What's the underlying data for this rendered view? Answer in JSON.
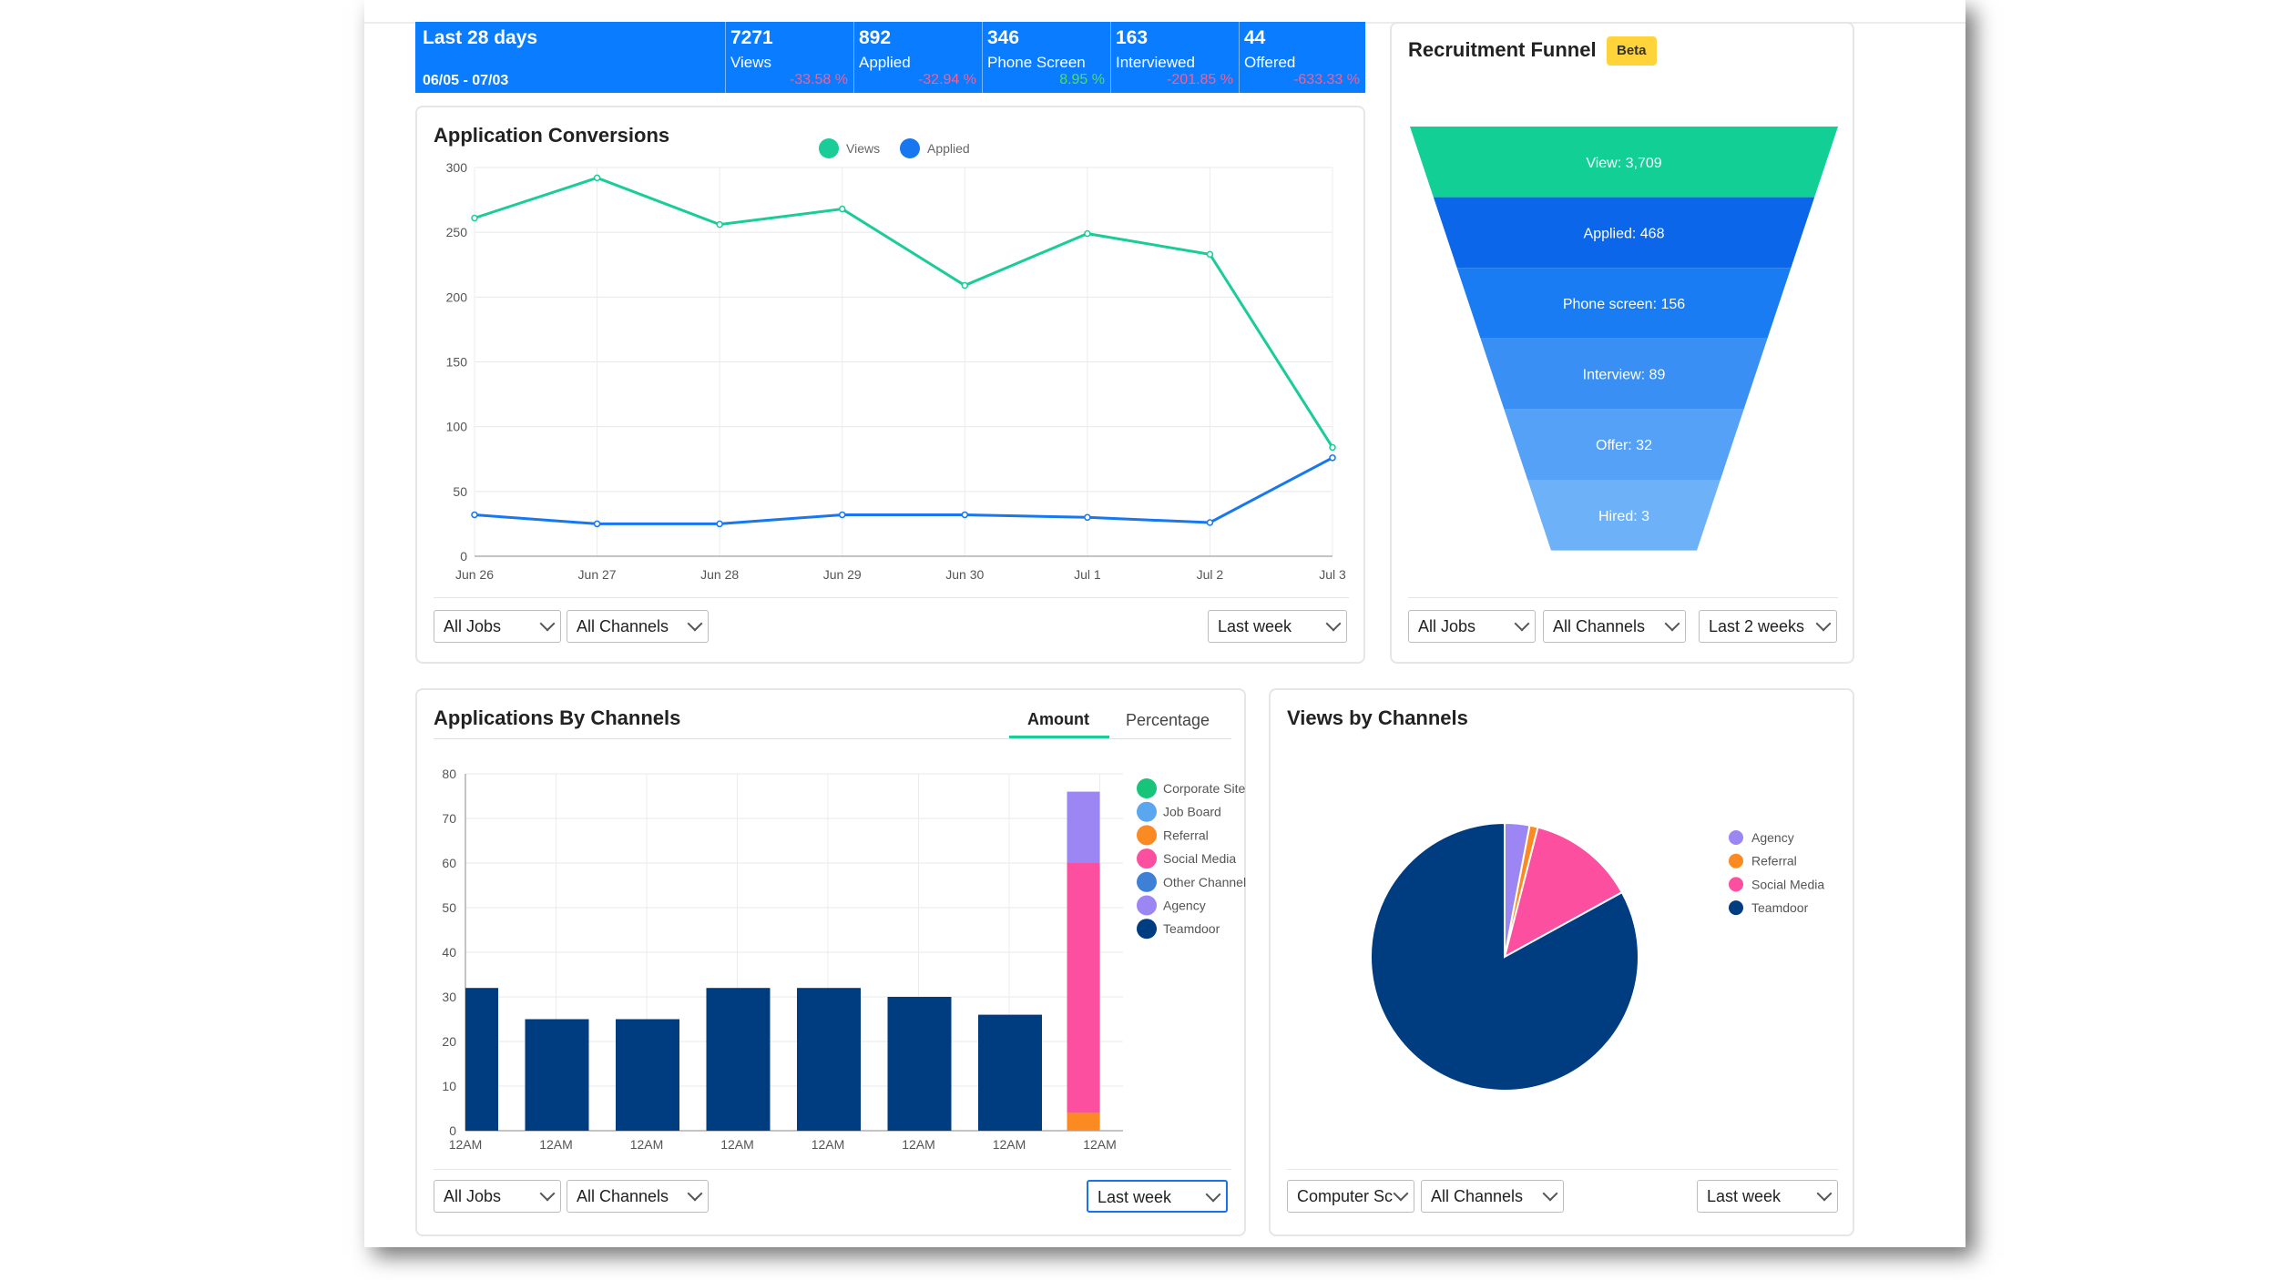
{
  "stats": {
    "period_label": "Last 28 days",
    "date_range": "06/05 - 07/03",
    "items": [
      {
        "value": "7271",
        "label": "Views",
        "change": "-33.58 %",
        "change_color": "#ff5c8a"
      },
      {
        "value": "892",
        "label": "Applied",
        "change": "-32.94 %",
        "change_color": "#ff5c8a"
      },
      {
        "value": "346",
        "label": "Phone Screen",
        "change": "8.95 %",
        "change_color": "#52e052"
      },
      {
        "value": "163",
        "label": "Interviewed",
        "change": "-201.85 %",
        "change_color": "#ff5c8a"
      },
      {
        "value": "44",
        "label": "Offered",
        "change": "-633.33 %",
        "change_color": "#ff5c8a"
      }
    ]
  },
  "conversions": {
    "title": "Application Conversions",
    "filters": {
      "job": "All Jobs",
      "channel": "All Channels",
      "range": "Last week"
    },
    "chart_data": {
      "type": "line",
      "x": [
        "Jun 26",
        "Jun 27",
        "Jun 28",
        "Jun 29",
        "Jun 30",
        "Jul 1",
        "Jul 2",
        "Jul 3"
      ],
      "series": [
        {
          "name": "Views",
          "color": "#19cc98",
          "values": [
            261,
            292,
            256,
            268,
            209,
            249,
            233,
            84
          ]
        },
        {
          "name": "Applied",
          "color": "#1777f0",
          "values": [
            32,
            25,
            25,
            32,
            32,
            30,
            26,
            76
          ]
        }
      ],
      "ylim": [
        0,
        300
      ],
      "yticks": [
        0,
        50,
        100,
        150,
        200,
        250,
        300
      ],
      "grid": true,
      "legend": "top-center"
    }
  },
  "funnel": {
    "title": "Recruitment Funnel",
    "badge": "Beta",
    "filters": {
      "job": "All Jobs",
      "channel": "All Channels",
      "range": "Last 2 weeks"
    },
    "chart_data": {
      "type": "funnel",
      "stages": [
        {
          "label": "View: 3,709",
          "value": 3709,
          "color": "#12cf96"
        },
        {
          "label": "Applied: 468",
          "value": 468,
          "color": "#0c66ea"
        },
        {
          "label": "Phone screen: 156",
          "value": 156,
          "color": "#1a7cf2"
        },
        {
          "label": "Interview: 89",
          "value": 89,
          "color": "#3a8ff5"
        },
        {
          "label": "Offer: 32",
          "value": 32,
          "color": "#54a1f7"
        },
        {
          "label": "Hired: 3",
          "value": 3,
          "color": "#6db1f9"
        }
      ]
    }
  },
  "channels": {
    "title": "Applications By Channels",
    "tabs": {
      "amount": "Amount",
      "percentage": "Percentage"
    },
    "filters": {
      "job": "All Jobs",
      "channel": "All Channels",
      "range": "Last week"
    },
    "chart_data": {
      "type": "bar",
      "stacked": true,
      "categories": [
        "12AM",
        "12AM",
        "12AM",
        "12AM",
        "12AM",
        "12AM",
        "12AM",
        "12AM"
      ],
      "series": [
        {
          "name": "Corporate Site",
          "color": "#17c47a",
          "values": [
            0,
            0,
            0,
            0,
            0,
            0,
            0,
            0
          ]
        },
        {
          "name": "Job Board",
          "color": "#5aa7f0",
          "values": [
            0,
            0,
            0,
            0,
            0,
            0,
            0,
            0
          ]
        },
        {
          "name": "Referral",
          "color": "#fb8a22",
          "values": [
            0,
            0,
            0,
            0,
            0,
            0,
            0,
            4
          ]
        },
        {
          "name": "Social Media",
          "color": "#fd4f9f",
          "values": [
            0,
            0,
            0,
            0,
            0,
            0,
            0,
            56
          ]
        },
        {
          "name": "Other Channel",
          "color": "#3d80d6",
          "values": [
            0,
            0,
            0,
            0,
            0,
            0,
            0,
            0
          ]
        },
        {
          "name": "Agency",
          "color": "#9b86f4",
          "values": [
            0,
            0,
            0,
            0,
            0,
            0,
            0,
            16
          ]
        },
        {
          "name": "Teamdoor",
          "color": "#003c80",
          "values": [
            32,
            25,
            25,
            32,
            32,
            30,
            26,
            0
          ]
        }
      ],
      "ylim": [
        0,
        80
      ],
      "yticks": [
        0,
        10,
        20,
        30,
        40,
        50,
        60,
        70,
        80
      ],
      "grid": true,
      "legend": "right"
    }
  },
  "views_channels": {
    "title": "Views by Channels",
    "filters": {
      "job": "Computer Sc",
      "channel": "All Channels",
      "range": "Last week"
    },
    "chart_data": {
      "type": "pie",
      "slices": [
        {
          "name": "Agency",
          "value": 3,
          "color": "#9b86f4"
        },
        {
          "name": "Referral",
          "value": 1,
          "color": "#fb8a22"
        },
        {
          "name": "Social Media",
          "value": 13,
          "color": "#fd4f9f"
        },
        {
          "name": "Teamdoor",
          "value": 83,
          "color": "#003c80"
        }
      ],
      "legend": "right"
    }
  }
}
